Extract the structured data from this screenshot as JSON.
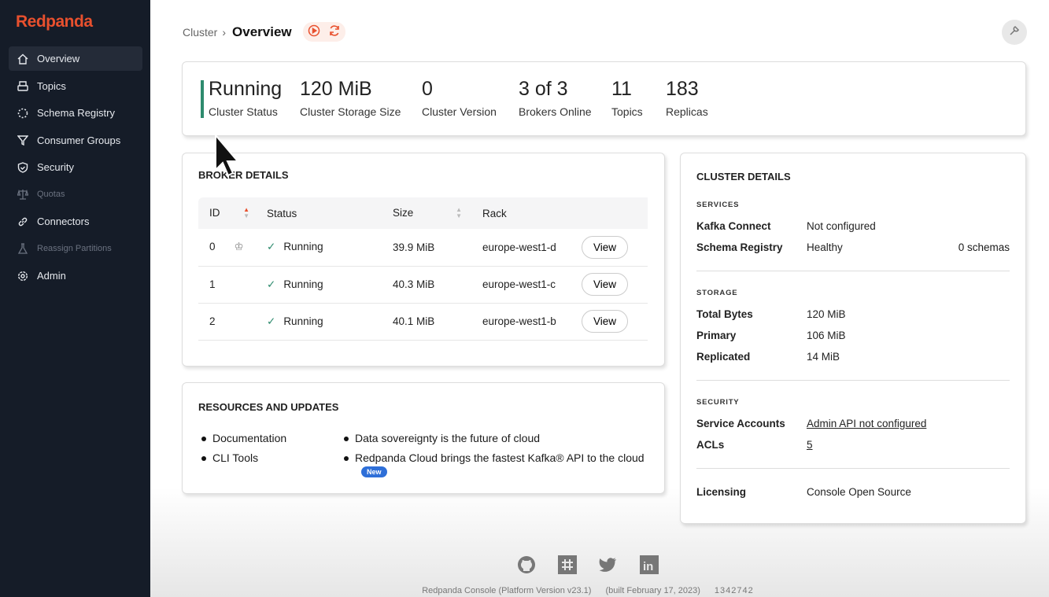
{
  "sidebar": {
    "logo": "Redpanda",
    "items": [
      {
        "label": "Overview",
        "icon": "home-icon"
      },
      {
        "label": "Topics",
        "icon": "topics-icon"
      },
      {
        "label": "Schema Registry",
        "icon": "schema-icon"
      },
      {
        "label": "Consumer Groups",
        "icon": "filter-icon"
      },
      {
        "label": "Security",
        "icon": "shield-icon"
      },
      {
        "label": "Quotas",
        "icon": "scale-icon"
      },
      {
        "label": "Connectors",
        "icon": "link-icon"
      },
      {
        "label": "Reassign Partitions",
        "icon": "flask-icon"
      },
      {
        "label": "Admin",
        "icon": "gear-icon"
      }
    ]
  },
  "header": {
    "breadcrumb": "Cluster",
    "title": "Overview"
  },
  "stats": [
    {
      "value": "Running",
      "label": "Cluster Status"
    },
    {
      "value": "120 MiB",
      "label": "Cluster Storage Size"
    },
    {
      "value": "0",
      "label": "Cluster Version"
    },
    {
      "value": "3 of 3",
      "label": "Brokers Online"
    },
    {
      "value": "11",
      "label": "Topics"
    },
    {
      "value": "183",
      "label": "Replicas"
    }
  ],
  "broker": {
    "title": "BROKER DETAILS",
    "columns": [
      "ID",
      "Status",
      "Size",
      "Rack"
    ],
    "view_label": "View",
    "rows": [
      {
        "id": "0",
        "status": "Running",
        "size": "39.9 MiB",
        "rack": "europe-west1-d"
      },
      {
        "id": "1",
        "status": "Running",
        "size": "40.3 MiB",
        "rack": "europe-west1-c"
      },
      {
        "id": "2",
        "status": "Running",
        "size": "40.1 MiB",
        "rack": "europe-west1-b"
      }
    ]
  },
  "resources": {
    "title": "RESOURCES AND UPDATES",
    "left": [
      "Documentation",
      "CLI Tools"
    ],
    "right": [
      "Data sovereignty is the future of cloud",
      "Redpanda Cloud brings the fastest Kafka® API to the cloud"
    ],
    "new_badge": "New"
  },
  "cluster": {
    "title": "CLUSTER DETAILS",
    "services_label": "SERVICES",
    "kafka_connect": "Kafka Connect",
    "kafka_connect_val": "Not configured",
    "schema_registry": "Schema Registry",
    "schema_registry_val": "Healthy",
    "schemas": "0 schemas",
    "storage_label": "STORAGE",
    "total": "Total Bytes",
    "total_val": "120 MiB",
    "primary": "Primary",
    "primary_val": "106 MiB",
    "replicated": "Replicated",
    "replicated_val": "14 MiB",
    "security_label": "SECURITY",
    "service_accounts": "Service Accounts",
    "service_accounts_val": "Admin API not configured",
    "acls": "ACLs",
    "acls_val": "5",
    "licensing": "Licensing",
    "licensing_val": "Console Open Source"
  },
  "footer": {
    "version": "Redpanda Console (Platform Version v23.1)",
    "built": "(built February 17, 2023)",
    "commit": "1342742"
  },
  "colors": {
    "brand": "#e8502e",
    "sidebar": "#151c28",
    "running": "#2e8b6e"
  }
}
